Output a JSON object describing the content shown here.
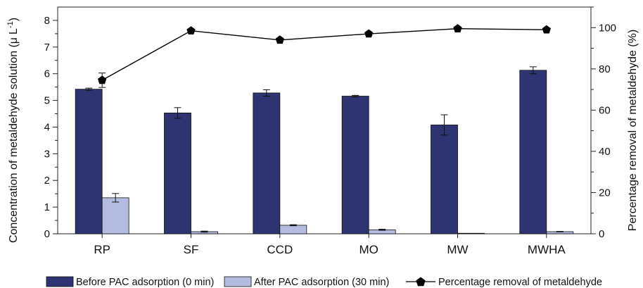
{
  "chart_data": {
    "type": "bar",
    "categories": [
      "RP",
      "SF",
      "CCD",
      "MO",
      "MW",
      "MWHA"
    ],
    "ylabel": "Concentration of metaldehyde solution (μ L⁻¹)",
    "ylabel_display": {
      "pre": "Concentration of metaldehyde solution (",
      "mu": "μ",
      "unit": "L",
      "sup": "-1",
      "post": ")"
    },
    "y2label": "Percentage removal of metaldehyde (%)",
    "ylim": [
      0,
      8.5
    ],
    "y_ticks": [
      "0",
      "1",
      "2",
      "3",
      "4",
      "5",
      "6",
      "7",
      "8"
    ],
    "y2lim": [
      0,
      110
    ],
    "y2_ticks": [
      "0",
      "20",
      "40",
      "60",
      "80",
      "100"
    ],
    "grid": false,
    "legend_position": "bottom",
    "series": [
      {
        "name": "Before PAC adsorption (0 min)",
        "kind": "bar",
        "axis": "left",
        "color": "#2e3472",
        "values": [
          5.42,
          4.53,
          5.28,
          5.16,
          4.08,
          6.13
        ],
        "errors": [
          0.04,
          0.2,
          0.12,
          0.03,
          0.38,
          0.13
        ]
      },
      {
        "name": "After PAC adsorption (30 min)",
        "kind": "bar",
        "axis": "left",
        "color": "#b3bce0",
        "values": [
          1.35,
          0.08,
          0.32,
          0.15,
          0.02,
          0.08
        ],
        "errors": [
          0.16,
          0.02,
          0.02,
          0.02,
          0.0,
          0.01
        ]
      },
      {
        "name": "Percentage removal of metaldehyde",
        "kind": "line",
        "axis": "right",
        "color": "#000000",
        "marker": "pentagon",
        "values": [
          74.5,
          98.5,
          94,
          97,
          99.5,
          99
        ],
        "errors": [
          3.5,
          0,
          0,
          0,
          0,
          0
        ]
      }
    ]
  }
}
